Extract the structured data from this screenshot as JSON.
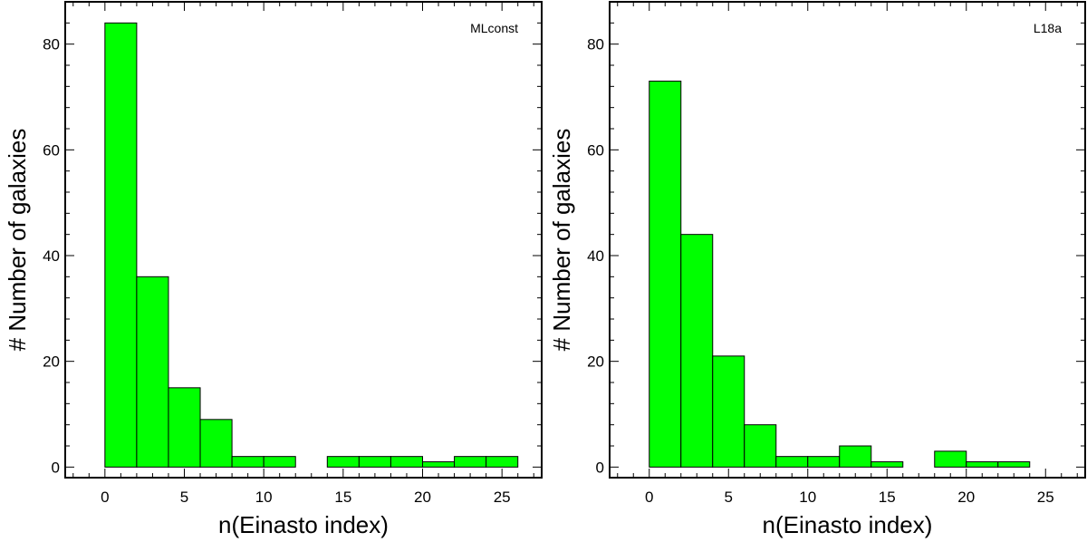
{
  "chart_data": [
    {
      "type": "bar",
      "panel_label": "MLconst",
      "xlabel": "n(Einasto index)",
      "ylabel": "# Number of galaxies",
      "xlim": [
        -2.5,
        27.5
      ],
      "ylim": [
        -2,
        88
      ],
      "xticks": [
        0,
        5,
        10,
        15,
        20,
        25
      ],
      "yticks": [
        0,
        20,
        40,
        60,
        80
      ],
      "bin_width": 2,
      "bins": [
        {
          "x0": 0,
          "value": 84
        },
        {
          "x0": 2,
          "value": 36
        },
        {
          "x0": 4,
          "value": 15
        },
        {
          "x0": 6,
          "value": 9
        },
        {
          "x0": 8,
          "value": 2
        },
        {
          "x0": 10,
          "value": 2
        },
        {
          "x0": 12,
          "value": 0
        },
        {
          "x0": 14,
          "value": 2
        },
        {
          "x0": 16,
          "value": 2
        },
        {
          "x0": 18,
          "value": 2
        },
        {
          "x0": 20,
          "value": 1
        },
        {
          "x0": 22,
          "value": 2
        },
        {
          "x0": 24,
          "value": 2
        }
      ]
    },
    {
      "type": "bar",
      "panel_label": "L18a",
      "xlabel": "n(Einasto index)",
      "ylabel": "# Number of galaxies",
      "xlim": [
        -2.5,
        27.5
      ],
      "ylim": [
        -2,
        88
      ],
      "xticks": [
        0,
        5,
        10,
        15,
        20,
        25
      ],
      "yticks": [
        0,
        20,
        40,
        60,
        80
      ],
      "bin_width": 2,
      "bins": [
        {
          "x0": 0,
          "value": 73
        },
        {
          "x0": 2,
          "value": 44
        },
        {
          "x0": 4,
          "value": 21
        },
        {
          "x0": 6,
          "value": 8
        },
        {
          "x0": 8,
          "value": 2
        },
        {
          "x0": 10,
          "value": 2
        },
        {
          "x0": 12,
          "value": 4
        },
        {
          "x0": 14,
          "value": 1
        },
        {
          "x0": 16,
          "value": 0
        },
        {
          "x0": 18,
          "value": 3
        },
        {
          "x0": 20,
          "value": 1
        },
        {
          "x0": 22,
          "value": 1
        }
      ]
    }
  ],
  "style": {
    "bar_color": "#00ff00",
    "edge_color": "#000000"
  }
}
